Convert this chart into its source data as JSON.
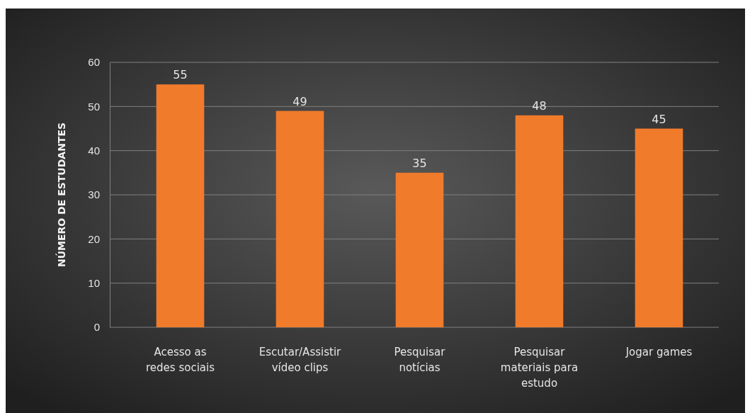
{
  "chart_data": {
    "type": "bar",
    "ylabel": "NÚMERO DE ESTUDANTES",
    "categories": [
      "Acesso as redes sociais",
      "Escutar/Assistir vídeo clips",
      "Pesquisar notícias",
      "Pesquisar materiais para estudo",
      "Jogar games"
    ],
    "values": [
      55,
      49,
      35,
      48,
      45
    ],
    "color": "#f07b2b",
    "ylim": [
      0,
      60
    ],
    "yticks": [
      0,
      10,
      20,
      30,
      40,
      50,
      60
    ],
    "grid": "y",
    "data_labels": true
  }
}
